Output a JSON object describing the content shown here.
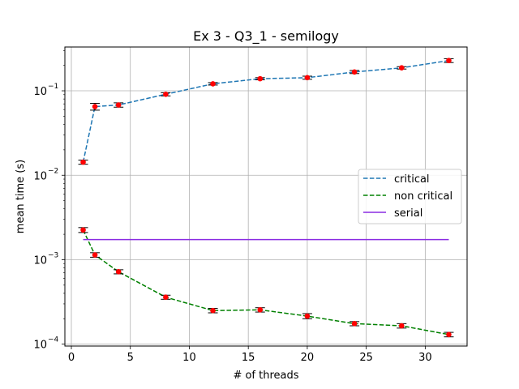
{
  "chart_data": {
    "type": "line",
    "title": "Ex 3 - Q3_1 - semilogy",
    "xlabel": "# of threads",
    "ylabel": "mean time (s)",
    "xlim": [
      -0.55,
      33.55
    ],
    "ylim": [
      9.5e-05,
      0.33
    ],
    "yscale": "log",
    "grid": true,
    "legend_position": "center-right",
    "x_ticks": [
      0,
      5,
      10,
      15,
      20,
      25,
      30
    ],
    "x_tick_labels": [
      "0",
      "5",
      "10",
      "15",
      "20",
      "25",
      "30"
    ],
    "y_ticks": [
      0.0001,
      0.001,
      0.01,
      0.1
    ],
    "y_tick_labels": [
      "10",
      "10",
      "10",
      "10"
    ],
    "y_tick_exponents": [
      "−4",
      "−3",
      "−2",
      "−1"
    ],
    "series": [
      {
        "name": "critical",
        "color": "#1f77b4",
        "dash": "dashed",
        "x": [
          1,
          2,
          4,
          8,
          12,
          16,
          20,
          24,
          28,
          32
        ],
        "y": [
          0.0143,
          0.065,
          0.068,
          0.091,
          0.121,
          0.139,
          0.143,
          0.167,
          0.187,
          0.228
        ],
        "err": [
          0.0008,
          0.006,
          0.004,
          0.004,
          0.004,
          0.004,
          0.006,
          0.007,
          0.006,
          0.012
        ]
      },
      {
        "name": "non critical",
        "color": "#008000",
        "dash": "dashed",
        "x": [
          1,
          2,
          4,
          8,
          12,
          16,
          20,
          24,
          28,
          32
        ],
        "y": [
          0.00225,
          0.00114,
          0.00072,
          0.00036,
          0.00025,
          0.000255,
          0.000215,
          0.000175,
          0.000165,
          0.00013
        ],
        "err": [
          0.00015,
          7e-05,
          4e-05,
          2e-05,
          1.5e-05,
          1.5e-05,
          1.5e-05,
          1e-05,
          1e-05,
          8e-06
        ]
      },
      {
        "name": "serial",
        "color": "#8a2be2",
        "dash": "solid",
        "x": [
          1,
          32
        ],
        "y": [
          0.00173,
          0.00173
        ]
      }
    ],
    "marker_color": "#ff0000"
  }
}
